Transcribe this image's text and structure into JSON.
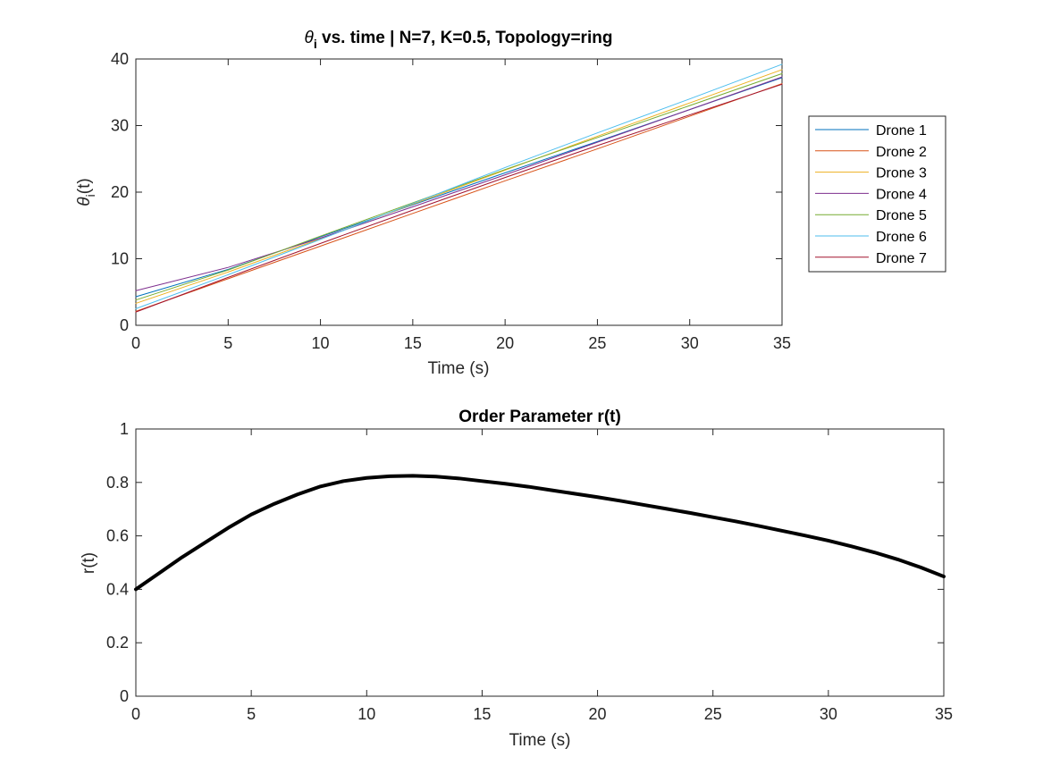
{
  "chart_data": [
    {
      "type": "line",
      "title_prefix": "θ",
      "title_sub": "i",
      "title_rest": " vs. time | N=7, K=0.5, Topology=ring",
      "xlabel": "Time (s)",
      "ylabel_main": "θ",
      "ylabel_sub": "i",
      "ylabel_rest": "(t)",
      "xlim": [
        0,
        35
      ],
      "ylim": [
        0,
        40
      ],
      "xticks": [
        0,
        5,
        10,
        15,
        20,
        25,
        30,
        35
      ],
      "yticks": [
        0,
        10,
        20,
        30,
        40
      ],
      "grid": false,
      "legend_placement": "outside-right",
      "series": [
        {
          "name": "Drone 1",
          "color": "#0072BD",
          "x": [
            0,
            5,
            10,
            15,
            20,
            25,
            30,
            35
          ],
          "y": [
            4.3,
            8.4,
            13.3,
            18.1,
            22.9,
            27.6,
            32.4,
            37.2
          ]
        },
        {
          "name": "Drone 2",
          "color": "#D95319",
          "x": [
            0,
            5,
            10,
            15,
            20,
            25,
            30,
            35
          ],
          "y": [
            2.1,
            7.0,
            11.9,
            16.8,
            21.7,
            26.5,
            31.4,
            36.3
          ]
        },
        {
          "name": "Drone 3",
          "color": "#EDB120",
          "x": [
            0,
            5,
            10,
            15,
            20,
            25,
            30,
            35
          ],
          "y": [
            3.3,
            8.0,
            13.0,
            18.2,
            23.3,
            28.4,
            33.4,
            38.4
          ]
        },
        {
          "name": "Drone 4",
          "color": "#7E2F8E",
          "x": [
            0,
            5,
            10,
            15,
            20,
            25,
            30,
            35
          ],
          "y": [
            5.2,
            8.7,
            13.1,
            17.8,
            22.6,
            27.5,
            32.4,
            37.3
          ]
        },
        {
          "name": "Drone 5",
          "color": "#77AC30",
          "x": [
            0,
            5,
            10,
            15,
            20,
            25,
            30,
            35
          ],
          "y": [
            3.8,
            8.3,
            13.4,
            18.4,
            23.4,
            28.2,
            33.0,
            37.8
          ]
        },
        {
          "name": "Drone 6",
          "color": "#4DBEEE",
          "x": [
            0,
            5,
            10,
            15,
            20,
            25,
            30,
            35
          ],
          "y": [
            2.5,
            7.6,
            12.9,
            18.3,
            23.7,
            28.9,
            34.0,
            39.2
          ]
        },
        {
          "name": "Drone 7",
          "color": "#A2142F",
          "x": [
            0,
            5,
            10,
            15,
            20,
            25,
            30,
            35
          ],
          "y": [
            2.0,
            7.2,
            12.3,
            17.3,
            22.2,
            27.0,
            31.6,
            36.2
          ]
        }
      ]
    },
    {
      "type": "line",
      "title": "Order Parameter r(t)",
      "xlabel": "Time (s)",
      "ylabel": "r(t)",
      "xlim": [
        0,
        35
      ],
      "ylim": [
        0,
        1
      ],
      "xticks": [
        0,
        5,
        10,
        15,
        20,
        25,
        30,
        35
      ],
      "yticks": [
        0,
        0.2,
        0.4,
        0.6,
        0.8,
        1
      ],
      "grid": false,
      "series": [
        {
          "color": "#000000",
          "x": [
            0,
            1,
            2,
            3,
            4,
            5,
            6,
            7,
            8,
            9,
            10,
            11,
            12,
            13,
            14,
            15,
            16,
            17,
            18,
            19,
            20,
            21,
            22,
            23,
            24,
            25,
            26,
            27,
            28,
            29,
            30,
            31,
            32,
            33,
            34,
            35
          ],
          "y": [
            0.4,
            0.46,
            0.52,
            0.575,
            0.63,
            0.68,
            0.72,
            0.755,
            0.785,
            0.805,
            0.817,
            0.823,
            0.825,
            0.822,
            0.815,
            0.805,
            0.795,
            0.784,
            0.771,
            0.758,
            0.745,
            0.731,
            0.716,
            0.701,
            0.686,
            0.67,
            0.654,
            0.637,
            0.619,
            0.601,
            0.582,
            0.561,
            0.538,
            0.512,
            0.482,
            0.448
          ]
        }
      ]
    }
  ]
}
